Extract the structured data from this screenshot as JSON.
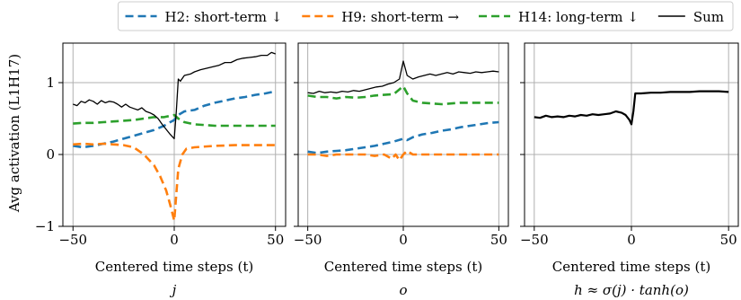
{
  "chart_data": {
    "type": "line",
    "ylabel": "Avg activation (L1H17)",
    "xlabel": "Centered time steps (t)",
    "xlim": [
      -55,
      55
    ],
    "ylim": [
      -1,
      1.55
    ],
    "xticks": [
      -50,
      0,
      50
    ],
    "xtick_labels": [
      "−50",
      "0",
      "50"
    ],
    "yticks": [
      -1,
      0,
      1
    ],
    "ytick_labels": [
      "−1",
      "0",
      "1"
    ],
    "grid": true,
    "legend_position": "top",
    "legend": [
      {
        "label": "H2: short-term ↓",
        "color": "#1f77b4",
        "style": "dashed"
      },
      {
        "label": "H9: short-term →",
        "color": "#ff7f0e",
        "style": "dashed"
      },
      {
        "label": "H14: long-term ↓",
        "color": "#2ca02c",
        "style": "dashed"
      },
      {
        "label": "Sum",
        "color": "#000000",
        "style": "solid"
      }
    ],
    "panels": [
      {
        "sublabel": "j",
        "series": [
          {
            "key": "h2",
            "color": "#1f77b4",
            "dashed": true,
            "points": [
              [
                -50,
                0.12
              ],
              [
                -45,
                0.1
              ],
              [
                -40,
                0.12
              ],
              [
                -35,
                0.15
              ],
              [
                -30,
                0.18
              ],
              [
                -25,
                0.22
              ],
              [
                -20,
                0.26
              ],
              [
                -15,
                0.3
              ],
              [
                -10,
                0.34
              ],
              [
                -5,
                0.4
              ],
              [
                -2,
                0.45
              ],
              [
                0,
                0.48
              ],
              [
                2,
                0.55
              ],
              [
                5,
                0.6
              ],
              [
                10,
                0.62
              ],
              [
                15,
                0.68
              ],
              [
                20,
                0.72
              ],
              [
                25,
                0.75
              ],
              [
                30,
                0.78
              ],
              [
                35,
                0.8
              ],
              [
                40,
                0.83
              ],
              [
                45,
                0.85
              ],
              [
                50,
                0.88
              ]
            ]
          },
          {
            "key": "h9",
            "color": "#ff7f0e",
            "dashed": true,
            "points": [
              [
                -50,
                0.14
              ],
              [
                -45,
                0.15
              ],
              [
                -40,
                0.14
              ],
              [
                -35,
                0.15
              ],
              [
                -30,
                0.14
              ],
              [
                -25,
                0.13
              ],
              [
                -20,
                0.1
              ],
              [
                -15,
                0.0
              ],
              [
                -10,
                -0.15
              ],
              [
                -7,
                -0.3
              ],
              [
                -4,
                -0.5
              ],
              [
                -2,
                -0.7
              ],
              [
                0,
                -0.92
              ],
              [
                1,
                -0.55
              ],
              [
                2,
                -0.2
              ],
              [
                4,
                0.0
              ],
              [
                6,
                0.08
              ],
              [
                10,
                0.1
              ],
              [
                20,
                0.12
              ],
              [
                30,
                0.13
              ],
              [
                40,
                0.13
              ],
              [
                50,
                0.13
              ]
            ]
          },
          {
            "key": "h14",
            "color": "#2ca02c",
            "dashed": true,
            "points": [
              [
                -50,
                0.43
              ],
              [
                -45,
                0.44
              ],
              [
                -40,
                0.44
              ],
              [
                -35,
                0.45
              ],
              [
                -30,
                0.46
              ],
              [
                -25,
                0.47
              ],
              [
                -20,
                0.48
              ],
              [
                -15,
                0.5
              ],
              [
                -10,
                0.52
              ],
              [
                -5,
                0.52
              ],
              [
                0,
                0.55
              ],
              [
                2,
                0.5
              ],
              [
                5,
                0.45
              ],
              [
                10,
                0.42
              ],
              [
                20,
                0.4
              ],
              [
                30,
                0.4
              ],
              [
                40,
                0.4
              ],
              [
                50,
                0.4
              ]
            ]
          },
          {
            "key": "sum",
            "color": "#000000",
            "dashed": false,
            "points": [
              [
                -50,
                0.7
              ],
              [
                -48,
                0.68
              ],
              [
                -46,
                0.74
              ],
              [
                -44,
                0.72
              ],
              [
                -42,
                0.76
              ],
              [
                -40,
                0.74
              ],
              [
                -38,
                0.7
              ],
              [
                -36,
                0.75
              ],
              [
                -34,
                0.72
              ],
              [
                -32,
                0.74
              ],
              [
                -30,
                0.73
              ],
              [
                -28,
                0.7
              ],
              [
                -26,
                0.66
              ],
              [
                -24,
                0.7
              ],
              [
                -22,
                0.66
              ],
              [
                -20,
                0.64
              ],
              [
                -18,
                0.62
              ],
              [
                -16,
                0.65
              ],
              [
                -14,
                0.6
              ],
              [
                -12,
                0.58
              ],
              [
                -10,
                0.55
              ],
              [
                -8,
                0.5
              ],
              [
                -6,
                0.42
              ],
              [
                -4,
                0.35
              ],
              [
                -2,
                0.28
              ],
              [
                0,
                0.22
              ],
              [
                1,
                0.6
              ],
              [
                2,
                1.05
              ],
              [
                3,
                1.02
              ],
              [
                5,
                1.1
              ],
              [
                8,
                1.12
              ],
              [
                10,
                1.15
              ],
              [
                13,
                1.18
              ],
              [
                16,
                1.2
              ],
              [
                19,
                1.22
              ],
              [
                22,
                1.24
              ],
              [
                25,
                1.28
              ],
              [
                28,
                1.28
              ],
              [
                31,
                1.32
              ],
              [
                34,
                1.34
              ],
              [
                37,
                1.35
              ],
              [
                40,
                1.36
              ],
              [
                43,
                1.38
              ],
              [
                46,
                1.38
              ],
              [
                48,
                1.42
              ],
              [
                50,
                1.4
              ]
            ]
          }
        ]
      },
      {
        "sublabel": "o",
        "series": [
          {
            "key": "h2",
            "color": "#1f77b4",
            "dashed": true,
            "points": [
              [
                -50,
                0.04
              ],
              [
                -45,
                0.02
              ],
              [
                -40,
                0.04
              ],
              [
                -35,
                0.05
              ],
              [
                -30,
                0.06
              ],
              [
                -25,
                0.08
              ],
              [
                -20,
                0.1
              ],
              [
                -15,
                0.12
              ],
              [
                -10,
                0.15
              ],
              [
                -5,
                0.18
              ],
              [
                0,
                0.22
              ],
              [
                2,
                0.2
              ],
              [
                5,
                0.24
              ],
              [
                10,
                0.28
              ],
              [
                15,
                0.3
              ],
              [
                20,
                0.33
              ],
              [
                25,
                0.35
              ],
              [
                30,
                0.38
              ],
              [
                35,
                0.4
              ],
              [
                40,
                0.42
              ],
              [
                45,
                0.44
              ],
              [
                50,
                0.45
              ]
            ]
          },
          {
            "key": "h9",
            "color": "#ff7f0e",
            "dashed": true,
            "points": [
              [
                -50,
                0.0
              ],
              [
                -45,
                0.0
              ],
              [
                -40,
                -0.02
              ],
              [
                -35,
                0.0
              ],
              [
                -30,
                0.0
              ],
              [
                -25,
                0.0
              ],
              [
                -20,
                0.0
              ],
              [
                -15,
                -0.02
              ],
              [
                -10,
                0.0
              ],
              [
                -6,
                -0.06
              ],
              [
                -4,
                0.0
              ],
              [
                -2,
                -0.08
              ],
              [
                0,
                0.0
              ],
              [
                2,
                0.05
              ],
              [
                5,
                0.0
              ],
              [
                10,
                0.0
              ],
              [
                20,
                0.0
              ],
              [
                30,
                0.0
              ],
              [
                40,
                0.0
              ],
              [
                50,
                0.0
              ]
            ]
          },
          {
            "key": "h14",
            "color": "#2ca02c",
            "dashed": true,
            "points": [
              [
                -50,
                0.82
              ],
              [
                -45,
                0.8
              ],
              [
                -40,
                0.8
              ],
              [
                -35,
                0.78
              ],
              [
                -30,
                0.8
              ],
              [
                -25,
                0.79
              ],
              [
                -20,
                0.8
              ],
              [
                -15,
                0.82
              ],
              [
                -10,
                0.83
              ],
              [
                -5,
                0.84
              ],
              [
                0,
                0.95
              ],
              [
                2,
                0.85
              ],
              [
                5,
                0.75
              ],
              [
                10,
                0.72
              ],
              [
                20,
                0.7
              ],
              [
                30,
                0.72
              ],
              [
                40,
                0.72
              ],
              [
                50,
                0.72
              ]
            ]
          },
          {
            "key": "sum",
            "color": "#000000",
            "dashed": false,
            "points": [
              [
                -50,
                0.86
              ],
              [
                -47,
                0.85
              ],
              [
                -44,
                0.88
              ],
              [
                -41,
                0.86
              ],
              [
                -38,
                0.87
              ],
              [
                -35,
                0.86
              ],
              [
                -32,
                0.88
              ],
              [
                -29,
                0.87
              ],
              [
                -26,
                0.89
              ],
              [
                -23,
                0.88
              ],
              [
                -20,
                0.9
              ],
              [
                -17,
                0.92
              ],
              [
                -14,
                0.94
              ],
              [
                -11,
                0.95
              ],
              [
                -8,
                0.98
              ],
              [
                -5,
                1.0
              ],
              [
                -2,
                1.05
              ],
              [
                0,
                1.3
              ],
              [
                2,
                1.1
              ],
              [
                5,
                1.05
              ],
              [
                8,
                1.08
              ],
              [
                11,
                1.1
              ],
              [
                14,
                1.12
              ],
              [
                17,
                1.1
              ],
              [
                20,
                1.12
              ],
              [
                23,
                1.14
              ],
              [
                26,
                1.12
              ],
              [
                29,
                1.15
              ],
              [
                32,
                1.14
              ],
              [
                35,
                1.13
              ],
              [
                38,
                1.15
              ],
              [
                41,
                1.14
              ],
              [
                44,
                1.15
              ],
              [
                47,
                1.16
              ],
              [
                50,
                1.15
              ]
            ]
          }
        ]
      },
      {
        "sublabel": "h ≈ σ(j) · tanh(o)",
        "series": [
          {
            "key": "sum",
            "color": "#000000",
            "dashed": false,
            "width": 2.2,
            "points": [
              [
                -50,
                0.52
              ],
              [
                -47,
                0.51
              ],
              [
                -44,
                0.54
              ],
              [
                -41,
                0.52
              ],
              [
                -38,
                0.53
              ],
              [
                -35,
                0.52
              ],
              [
                -32,
                0.54
              ],
              [
                -29,
                0.53
              ],
              [
                -26,
                0.55
              ],
              [
                -23,
                0.54
              ],
              [
                -20,
                0.56
              ],
              [
                -17,
                0.55
              ],
              [
                -14,
                0.56
              ],
              [
                -11,
                0.57
              ],
              [
                -8,
                0.6
              ],
              [
                -5,
                0.58
              ],
              [
                -3,
                0.55
              ],
              [
                -1,
                0.48
              ],
              [
                0,
                0.42
              ],
              [
                1,
                0.6
              ],
              [
                2,
                0.85
              ],
              [
                5,
                0.85
              ],
              [
                10,
                0.86
              ],
              [
                15,
                0.86
              ],
              [
                20,
                0.87
              ],
              [
                25,
                0.87
              ],
              [
                30,
                0.87
              ],
              [
                35,
                0.88
              ],
              [
                40,
                0.88
              ],
              [
                45,
                0.88
              ],
              [
                50,
                0.87
              ]
            ]
          }
        ]
      }
    ]
  }
}
